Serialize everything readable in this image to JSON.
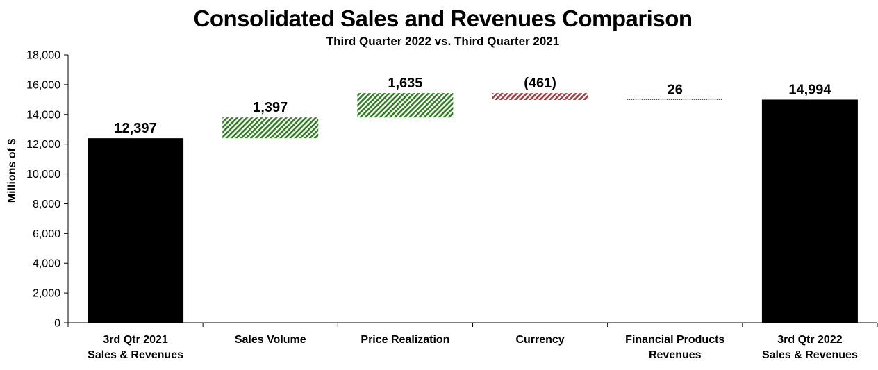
{
  "chart_data": {
    "type": "bar",
    "subtype": "waterfall",
    "title": "Consolidated Sales and Revenues Comparison",
    "subtitle": "Third Quarter 2022 vs. Third Quarter 2021",
    "xlabel": "",
    "ylabel": "Millions of $",
    "ylim": [
      0,
      18000
    ],
    "yticks": [
      0,
      2000,
      4000,
      6000,
      8000,
      10000,
      12000,
      14000,
      16000,
      18000
    ],
    "ytick_labels": [
      "0",
      "2,000",
      "4,000",
      "6,000",
      "8,000",
      "10,000",
      "12,000",
      "14,000",
      "16,000",
      "18,000"
    ],
    "grid": false,
    "legend": "none",
    "categories": [
      [
        "3rd Qtr 2021",
        "Sales & Revenues"
      ],
      [
        "Sales Volume"
      ],
      [
        "Price Realization"
      ],
      [
        "Currency"
      ],
      [
        "Financial Products",
        "Revenues"
      ],
      [
        "3rd Qtr 2022",
        "Sales & Revenues"
      ]
    ],
    "bars": [
      {
        "kind": "total",
        "value": 12397,
        "label": "12,397",
        "color": "#000000"
      },
      {
        "kind": "increase",
        "value": 1397,
        "label": "1,397",
        "color": "#2e7d1f"
      },
      {
        "kind": "increase",
        "value": 1635,
        "label": "1,635",
        "color": "#2e7d1f"
      },
      {
        "kind": "decrease",
        "value": -461,
        "label": "(461)",
        "color": "#a8393c"
      },
      {
        "kind": "increase",
        "value": 26,
        "label": "26",
        "color": "#2e7d1f"
      },
      {
        "kind": "total",
        "value": 14994,
        "label": "14,994",
        "color": "#000000"
      }
    ]
  }
}
